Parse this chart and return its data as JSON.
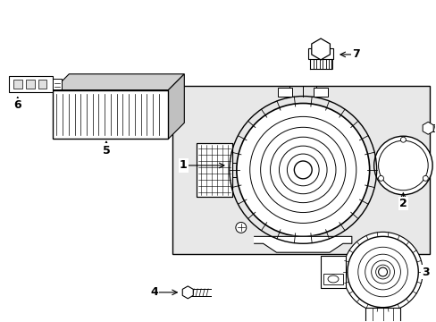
{
  "background_color": "#ffffff",
  "line_color": "#000000",
  "box_fill": "#e8e8e8",
  "fig_width": 4.89,
  "fig_height": 3.6,
  "dpi": 100
}
